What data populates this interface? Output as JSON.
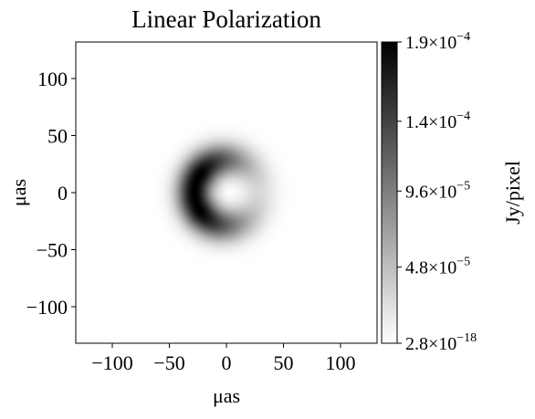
{
  "chart_data": {
    "type": "heatmap",
    "title": "Linear Polarization",
    "xlabel": "μas",
    "ylabel": "μas",
    "xlim": [
      -132,
      132
    ],
    "ylim": [
      -132,
      132
    ],
    "x_ticks": [
      {
        "value": -100,
        "label": "−100"
      },
      {
        "value": -50,
        "label": "−50"
      },
      {
        "value": 0,
        "label": "0"
      },
      {
        "value": 50,
        "label": "50"
      },
      {
        "value": 100,
        "label": "100"
      }
    ],
    "y_ticks": [
      {
        "value": 100,
        "label": "100"
      },
      {
        "value": 50,
        "label": "50"
      },
      {
        "value": 0,
        "label": "0"
      },
      {
        "value": -50,
        "label": "−50"
      },
      {
        "value": -100,
        "label": "−100"
      }
    ],
    "colormap": "gray_r",
    "colorbar": {
      "label": "Jy/pixel",
      "min": 2.8e-18,
      "max": 0.00019,
      "ticks": [
        {
          "value": 0.00019,
          "mantissa": "1.9×10",
          "exponent": "−4"
        },
        {
          "value": 0.00014,
          "mantissa": "1.4×10",
          "exponent": "−4"
        },
        {
          "value": 9.6e-05,
          "mantissa": "9.6×10",
          "exponent": "−5"
        },
        {
          "value": 4.8e-05,
          "mantissa": "4.8×10",
          "exponent": "−5"
        },
        {
          "value": 2.8e-18,
          "mantissa": "2.8×10",
          "exponent": "−18"
        }
      ]
    },
    "image_model": {
      "shape": "ring",
      "center": [
        0,
        0
      ],
      "peak_radius": 28,
      "width": 15,
      "brightest_side": "left",
      "peak_value": 0.00019
    }
  }
}
